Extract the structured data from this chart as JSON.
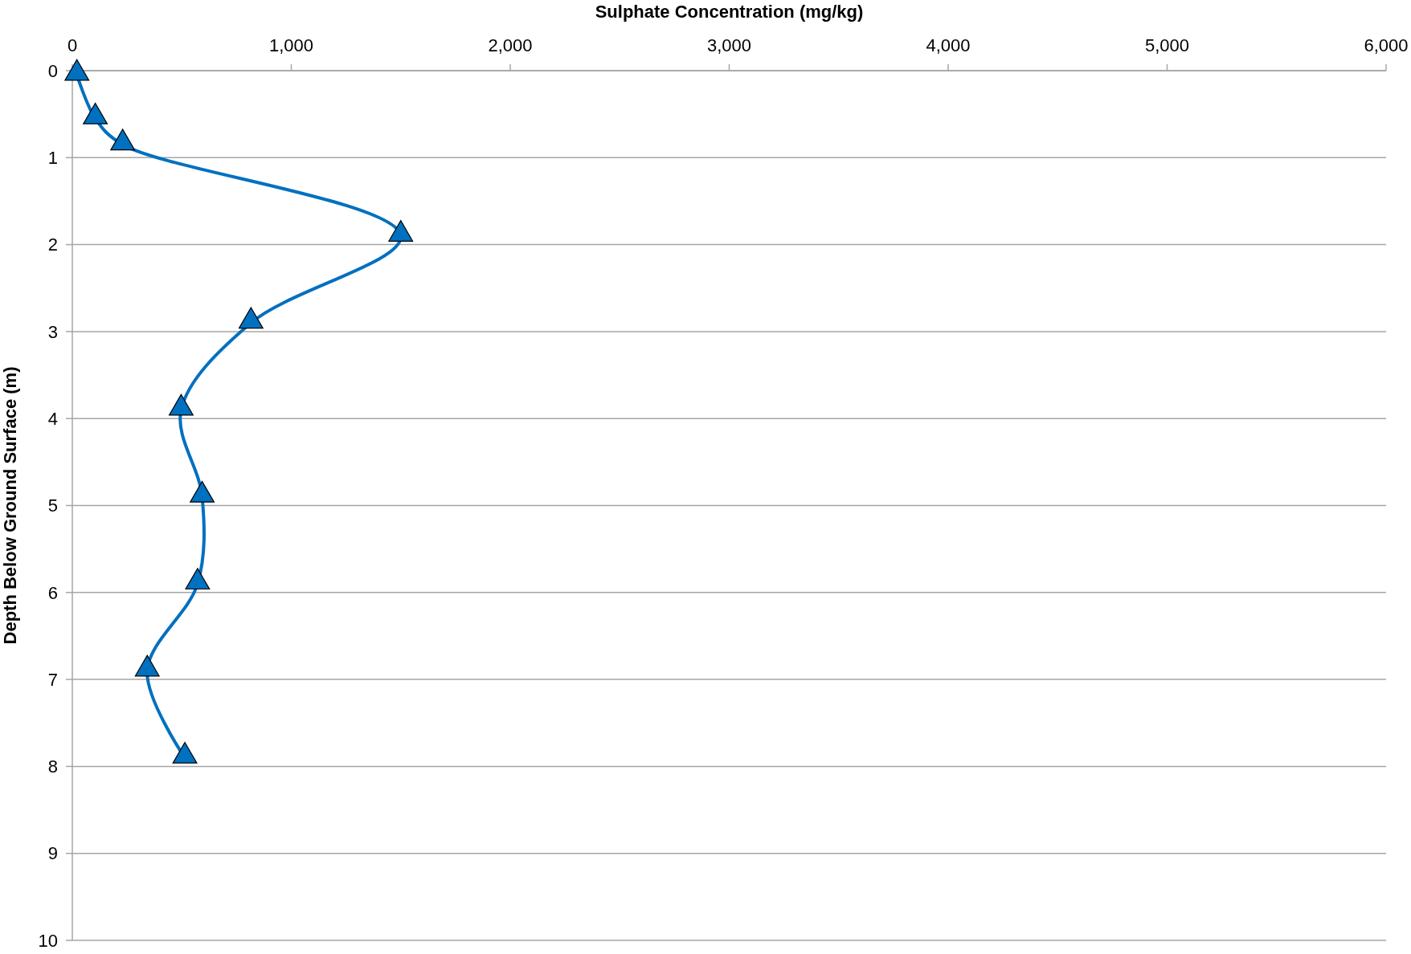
{
  "chart_data": {
    "type": "line",
    "xlabel": "Sulphate Concentration (mg/kg)",
    "ylabel": "Depth Below Ground Surface (m)",
    "xlim": [
      0,
      6000
    ],
    "xticks": [
      0,
      {
        "value": 1000,
        "label": "1,000"
      },
      {
        "value": 2000,
        "label": "2,000"
      },
      {
        "value": 3000,
        "label": "3,000"
      },
      {
        "value": 4000,
        "label": "4,000"
      },
      {
        "value": 5000,
        "label": "5,000"
      },
      {
        "value": 6000,
        "label": "6,000"
      }
    ],
    "ylim": [
      10,
      0
    ],
    "yticks": [
      0,
      1,
      2,
      3,
      4,
      5,
      6,
      7,
      8,
      9,
      10
    ],
    "grid": "y",
    "marker": "triangle",
    "line_style": "solid",
    "series": [
      {
        "color": "#0070c0",
        "x": [
          21,
          105,
          230,
          1500,
          816,
          497,
          593,
          572,
          342,
          514
        ],
        "values": [
          0.05,
          0.55,
          0.85,
          1.9,
          2.9,
          3.9,
          4.9,
          5.9,
          6.9,
          7.9
        ]
      }
    ]
  }
}
